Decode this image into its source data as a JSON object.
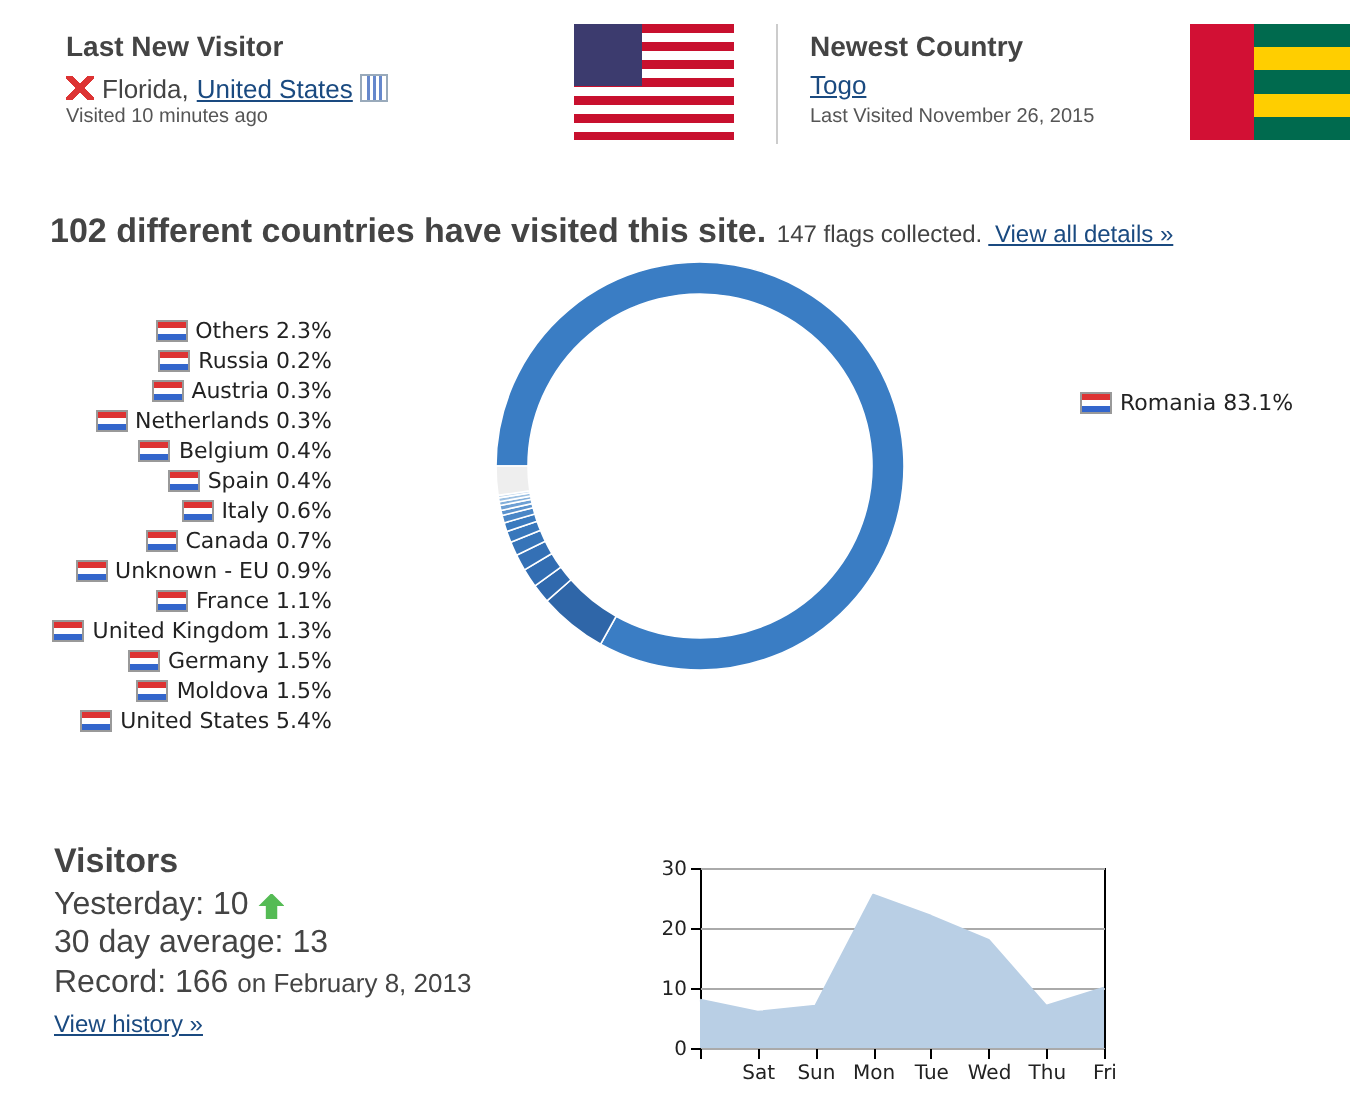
{
  "chart_data": [
    {
      "type": "other",
      "annotations": [
        "Last New Visitor",
        "Florida,",
        "United States",
        "Visited 10 minutes ago",
        "Newest Country",
        "Togo",
        "Last Visited November 26, 2015"
      ]
    },
    {
      "type": "donut",
      "title": "102 different countries have visited this site.",
      "subtitle": "147 flags collected.",
      "annotations": [
        "View all details »"
      ],
      "categories": [
        "Romania",
        "United States",
        "Moldova",
        "Germany",
        "United Kingdom",
        "France",
        "Unknown - EU",
        "Canada",
        "Italy",
        "Spain",
        "Belgium",
        "Netherlands",
        "Austria",
        "Russia",
        "Others"
      ],
      "values": [
        83.1,
        5.4,
        1.5,
        1.5,
        1.3,
        1.1,
        0.9,
        0.7,
        0.6,
        0.4,
        0.4,
        0.3,
        0.3,
        0.2,
        2.3
      ],
      "value_labels": [
        "83.1%",
        "5.4%",
        "1.5%",
        "1.5%",
        "1.3%",
        "1.1%",
        "0.9%",
        "0.7%",
        "0.6%",
        "0.4%",
        "0.4%",
        "0.3%",
        "0.3%",
        "0.2%",
        "2.3%"
      ],
      "colors": [
        "#3a7dc4",
        "#2f66a8",
        "#3069ad",
        "#326db2",
        "#3470b5",
        "#3674b8",
        "#3877bb",
        "#3a7abe",
        "#4a86c6",
        "#5b92cc",
        "#6d9fd3",
        "#83afda",
        "#9cc0e2",
        "#b7d1ea",
        "#eeeeee"
      ],
      "legend": "left"
    },
    {
      "type": "other",
      "annotations": [
        "Visitors",
        "Yesterday: 10",
        "30 day average: 13",
        "Record: 166",
        "on February 8, 2013",
        "View history »"
      ]
    },
    {
      "type": "area",
      "categories": [
        null,
        "Sat",
        "Sun",
        "Mon",
        "Tue",
        "Wed",
        "Thu",
        "Fri"
      ],
      "series": [
        {
          "color": "#b9cfe5",
          "values": [
            8,
            6,
            7,
            25.5,
            22,
            18,
            7,
            10
          ]
        }
      ],
      "ylim": [
        0,
        30
      ],
      "yticks": [
        0,
        10,
        20,
        30
      ],
      "grid": "y"
    }
  ]
}
